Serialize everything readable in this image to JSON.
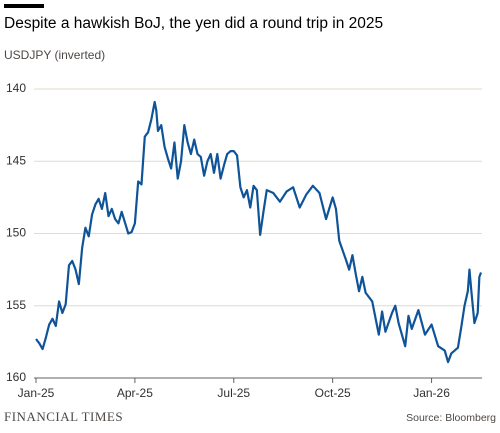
{
  "chart_data": {
    "type": "line",
    "title": "Despite a hawkish BoJ, the yen did a round trip in 2025",
    "subtitle": "USDJPY (inverted)",
    "source": "Source: Bloomberg",
    "brand": "FINANCIAL TIMES",
    "x": [
      0.0,
      0.1,
      0.2,
      0.3,
      0.4,
      0.5,
      0.6,
      0.7,
      0.8,
      0.9,
      1.0,
      1.1,
      1.2,
      1.3,
      1.4,
      1.5,
      1.6,
      1.7,
      1.8,
      1.9,
      2.0,
      2.1,
      2.2,
      2.3,
      2.4,
      2.5,
      2.6,
      2.8,
      2.9,
      3.0,
      3.1,
      3.2,
      3.3,
      3.4,
      3.5,
      3.6,
      3.65,
      3.7,
      3.8,
      3.9,
      4.0,
      4.1,
      4.2,
      4.3,
      4.4,
      4.5,
      4.6,
      4.7,
      4.8,
      4.9,
      5.0,
      5.1,
      5.2,
      5.3,
      5.4,
      5.5,
      5.6,
      5.7,
      5.8,
      5.9,
      6.0,
      6.1,
      6.2,
      6.3,
      6.4,
      6.5,
      6.6,
      6.7,
      6.8,
      6.9,
      7.0,
      7.2,
      7.4,
      7.6,
      7.8,
      8.0,
      8.2,
      8.4,
      8.6,
      8.8,
      9.0,
      9.1,
      9.2,
      9.4,
      9.5,
      9.6,
      9.7,
      9.8,
      9.9,
      10.0,
      10.2,
      10.4,
      10.5,
      10.6,
      10.8,
      10.9,
      11.0,
      11.2,
      11.3,
      11.4,
      11.6,
      11.8,
      12.0,
      12.2,
      12.4,
      12.5,
      12.6,
      12.8,
      12.9,
      13.0,
      13.1,
      13.15,
      13.2,
      13.3,
      13.4,
      13.45,
      13.5
    ],
    "values": [
      157.3,
      157.6,
      158.0,
      157.2,
      156.3,
      155.9,
      156.4,
      154.7,
      155.5,
      154.9,
      152.2,
      151.9,
      152.5,
      153.5,
      151.0,
      149.6,
      150.2,
      148.7,
      148.0,
      147.6,
      148.3,
      147.2,
      148.8,
      148.3,
      149.0,
      149.3,
      148.5,
      150.0,
      149.9,
      149.3,
      146.4,
      146.6,
      143.3,
      143.0,
      142.1,
      140.9,
      141.5,
      142.9,
      142.5,
      144.0,
      144.8,
      145.5,
      143.7,
      146.2,
      145.0,
      142.5,
      143.7,
      144.5,
      143.5,
      144.5,
      144.7,
      146.0,
      145.0,
      144.5,
      145.8,
      144.5,
      146.2,
      145.3,
      144.5,
      144.3,
      144.3,
      144.6,
      146.8,
      147.5,
      147.0,
      148.2,
      146.7,
      147.0,
      150.1,
      148.5,
      147.0,
      147.2,
      147.8,
      147.1,
      146.8,
      148.2,
      147.3,
      146.7,
      147.2,
      149.0,
      147.5,
      148.3,
      150.5,
      151.8,
      152.5,
      151.5,
      152.8,
      154.0,
      153.0,
      154.1,
      154.7,
      157.0,
      155.4,
      156.8,
      155.5,
      155.0,
      156.2,
      157.8,
      155.7,
      156.6,
      155.3,
      157.0,
      156.3,
      157.8,
      158.1,
      158.9,
      158.3,
      157.9,
      156.5,
      155.0,
      154.0,
      152.5,
      153.8,
      156.2,
      155.5,
      153.0,
      152.7
    ],
    "color": "#0f5499",
    "xlim": [
      0,
      13.5
    ],
    "xticks": [
      {
        "value": 0,
        "label": "Jan-25"
      },
      {
        "value": 3,
        "label": "Apr-25"
      },
      {
        "value": 6,
        "label": "Jul-25"
      },
      {
        "value": 9,
        "label": "Oct-25"
      },
      {
        "value": 12,
        "label": "Jan-26"
      }
    ],
    "ylim": [
      140,
      160
    ],
    "yticks": [
      140,
      145,
      150,
      155,
      160
    ],
    "inverted": true,
    "grid": true
  }
}
